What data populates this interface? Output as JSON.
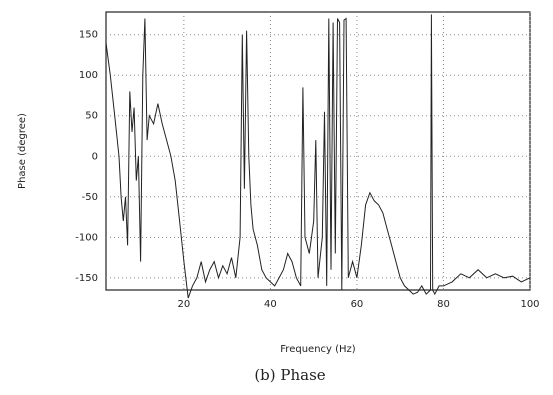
{
  "chart_data": {
    "type": "line",
    "xlabel": "Frequency (Hz)",
    "ylabel": "Phase (degree)",
    "caption": "(b) Phase",
    "x": [
      2,
      3,
      4,
      5,
      5.5,
      6,
      6.5,
      7,
      7.5,
      8,
      8.5,
      9,
      9.5,
      10,
      10.5,
      11,
      11.5,
      12,
      13,
      14,
      15,
      16,
      17,
      18,
      19,
      20,
      21,
      22,
      23,
      24,
      25,
      26,
      27,
      28,
      29,
      30,
      31,
      32,
      33,
      33.5,
      34,
      34.5,
      35,
      35.5,
      36,
      37,
      38,
      39,
      40,
      41,
      42,
      43,
      44,
      45,
      46,
      47,
      47.5,
      48,
      49,
      50,
      50.5,
      51,
      52,
      52.5,
      53,
      53.5,
      54,
      54.5,
      55,
      55.5,
      56,
      56.5,
      57,
      57.5,
      58,
      59,
      60,
      61,
      62,
      63,
      64,
      65,
      66,
      67,
      68,
      69,
      70,
      71,
      72,
      73,
      74,
      75,
      76,
      77,
      77.2,
      77.5,
      78,
      79,
      80,
      82,
      84,
      86,
      88,
      90,
      92,
      94,
      96,
      98,
      100
    ],
    "series": [
      {
        "name": "Phase",
        "color": "#222222",
        "values": [
          140,
          100,
          50,
          0,
          -50,
          -80,
          -50,
          -110,
          80,
          30,
          60,
          -30,
          0,
          -130,
          100,
          170,
          20,
          50,
          40,
          65,
          40,
          20,
          0,
          -30,
          -80,
          -130,
          -175,
          -160,
          -150,
          -130,
          -155,
          -140,
          -130,
          -150,
          -135,
          -145,
          -125,
          -150,
          -100,
          150,
          -40,
          155,
          0,
          -60,
          -90,
          -110,
          -140,
          -150,
          -155,
          -160,
          -150,
          -140,
          -120,
          -130,
          -150,
          -160,
          85,
          -100,
          -120,
          -80,
          20,
          -150,
          -100,
          55,
          -160,
          170,
          -140,
          165,
          -120,
          170,
          165,
          -165,
          168,
          170,
          -150,
          -130,
          -150,
          -110,
          -60,
          -45,
          -55,
          -60,
          -70,
          -90,
          -110,
          -130,
          -150,
          -160,
          -165,
          -170,
          -168,
          -160,
          -170,
          -165,
          175,
          -165,
          -170,
          -160,
          -160,
          -155,
          -145,
          -150,
          -140,
          -150,
          -145,
          -150,
          -148,
          -155,
          -150
        ]
      }
    ],
    "xlim": [
      2,
      100
    ],
    "ylim": [
      -165,
      178
    ],
    "xticks": [
      20,
      40,
      60,
      80,
      100
    ],
    "yticks": [
      -150,
      -100,
      -50,
      0,
      50,
      100,
      150
    ],
    "grid": true
  }
}
